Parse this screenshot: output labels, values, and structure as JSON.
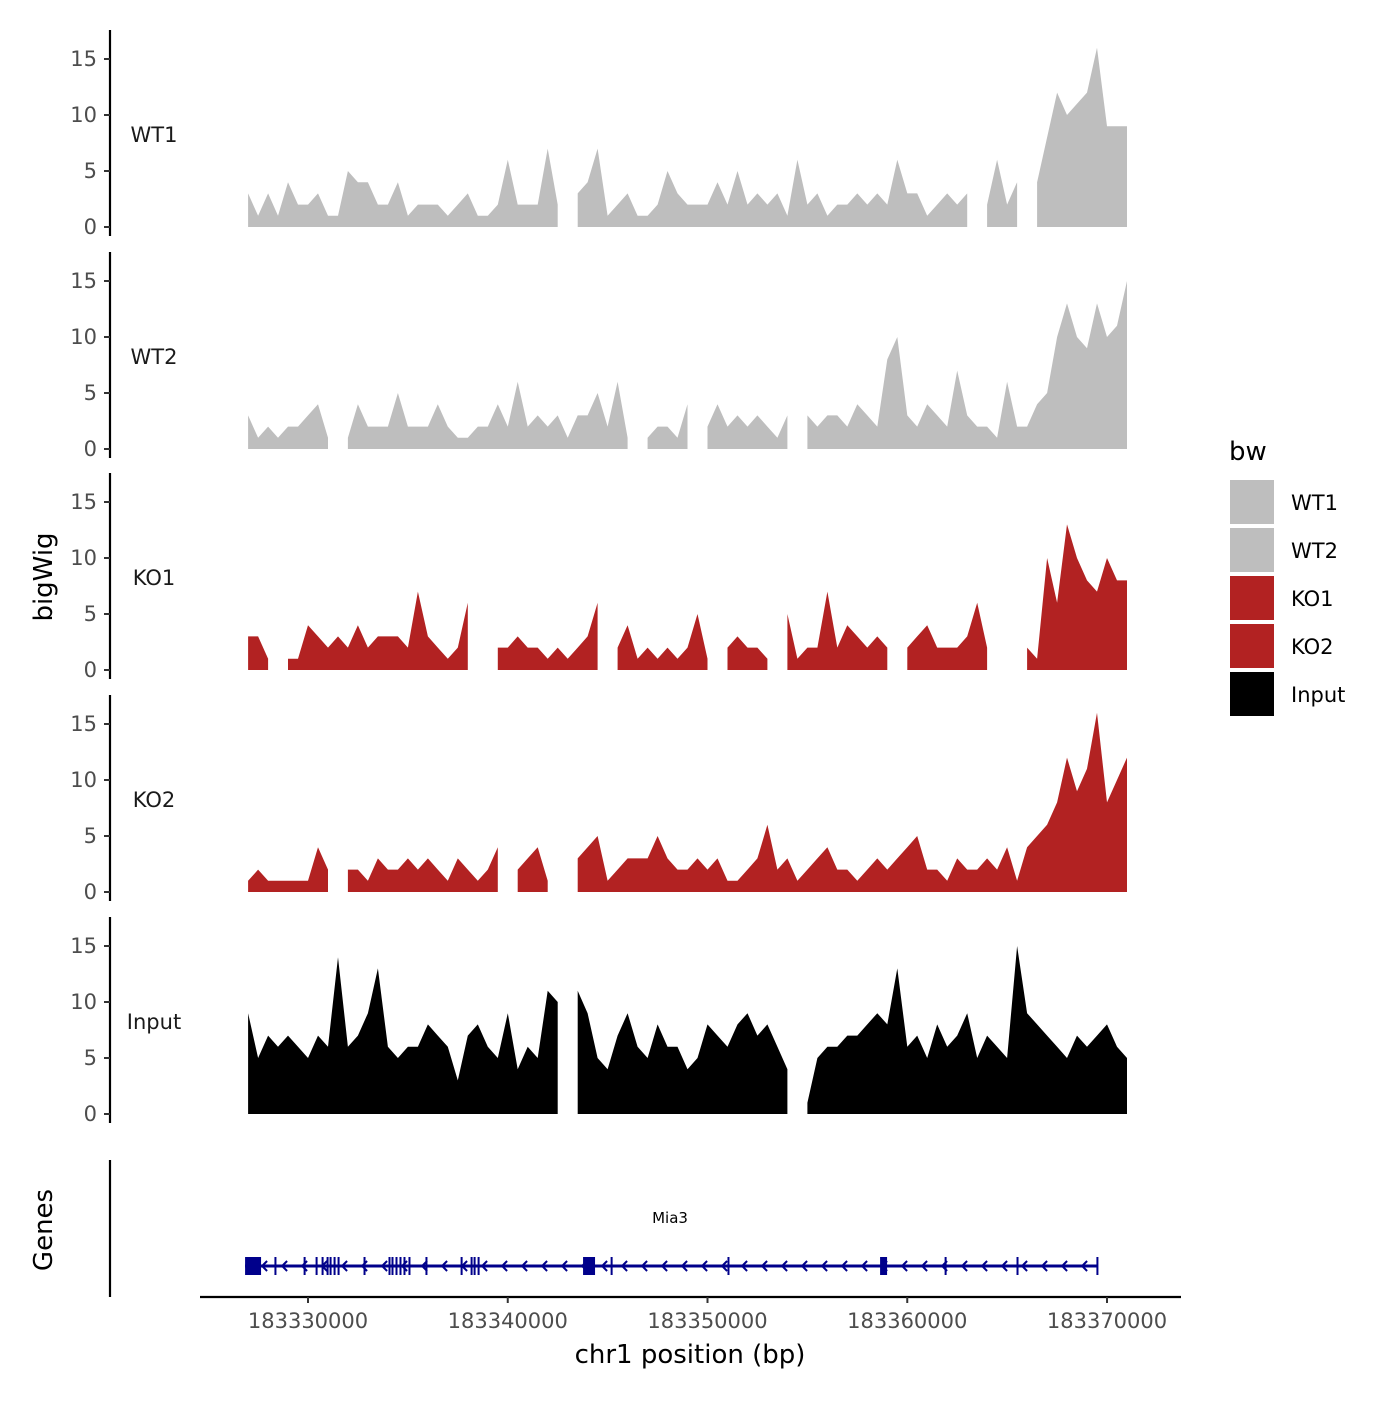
{
  "chart_data": {
    "type": "area",
    "ylabel": "bigWig",
    "genes_label": "Genes",
    "xlabel": "chr1 position (bp)",
    "x_ticks": [
      183330000,
      183340000,
      183350000,
      183360000,
      183370000
    ],
    "x_tick_labels": [
      "183330000",
      "183340000",
      "183350000",
      "183360000",
      "183370000"
    ],
    "xlim": [
      183326850,
      183371450
    ],
    "ylim": [
      0,
      16.5
    ],
    "y_ticks": [
      0,
      5,
      10,
      15
    ],
    "y_tick_labels": [
      "0",
      "5",
      "10",
      "15"
    ],
    "x_start": 183327000,
    "x_step": 500,
    "series": [
      {
        "name": "WT1",
        "color": "#bebebe",
        "values": [
          3,
          1,
          3,
          1,
          4,
          2,
          2,
          3,
          1,
          1,
          5,
          4,
          4,
          2,
          2,
          4,
          1,
          2,
          2,
          2,
          1,
          2,
          3,
          1,
          1,
          2,
          6,
          2,
          2,
          2,
          7,
          2,
          null,
          3,
          4,
          7,
          1,
          2,
          3,
          1,
          1,
          2,
          5,
          3,
          2,
          2,
          2,
          4,
          2,
          5,
          2,
          3,
          2,
          3,
          1,
          6,
          2,
          3,
          1,
          2,
          2,
          3,
          2,
          3,
          2,
          6,
          3,
          3,
          1,
          2,
          3,
          2,
          3,
          null,
          2,
          6,
          2,
          4,
          null,
          4,
          8,
          12,
          10,
          11,
          12,
          16,
          9,
          9,
          9
        ]
      },
      {
        "name": "WT2",
        "color": "#bebebe",
        "values": [
          3,
          1,
          2,
          1,
          2,
          2,
          3,
          4,
          1,
          null,
          1,
          4,
          2,
          2,
          2,
          5,
          2,
          2,
          2,
          4,
          2,
          1,
          1,
          2,
          2,
          4,
          2,
          6,
          2,
          3,
          2,
          3,
          1,
          3,
          3,
          5,
          2,
          6,
          1,
          null,
          1,
          2,
          2,
          1,
          4,
          null,
          2,
          4,
          2,
          3,
          2,
          3,
          2,
          1,
          3,
          null,
          3,
          2,
          3,
          3,
          2,
          4,
          3,
          2,
          8,
          10,
          3,
          2,
          4,
          3,
          2,
          7,
          3,
          2,
          2,
          1,
          6,
          2,
          2,
          4,
          5,
          10,
          13,
          10,
          9,
          13,
          10,
          11,
          15
        ]
      },
      {
        "name": "KO1",
        "color": "#b22222",
        "values": [
          3,
          3,
          1,
          null,
          1,
          1,
          4,
          3,
          2,
          3,
          2,
          4,
          2,
          3,
          3,
          3,
          2,
          7,
          3,
          2,
          1,
          2,
          6,
          null,
          null,
          2,
          2,
          3,
          2,
          2,
          1,
          2,
          1,
          2,
          3,
          6,
          null,
          2,
          4,
          1,
          2,
          1,
          2,
          1,
          2,
          5,
          1,
          null,
          2,
          3,
          2,
          2,
          1,
          null,
          5,
          1,
          2,
          2,
          7,
          2,
          4,
          3,
          2,
          3,
          2,
          null,
          2,
          3,
          4,
          2,
          2,
          2,
          3,
          6,
          2,
          null,
          2,
          null,
          2,
          1,
          10,
          6,
          13,
          10,
          8,
          7,
          10,
          8,
          8
        ]
      },
      {
        "name": "KO2",
        "color": "#b22222",
        "values": [
          1,
          2,
          1,
          1,
          1,
          1,
          1,
          4,
          2,
          null,
          2,
          2,
          1,
          3,
          2,
          2,
          3,
          2,
          3,
          2,
          1,
          3,
          2,
          1,
          2,
          4,
          null,
          2,
          3,
          4,
          1,
          null,
          null,
          3,
          4,
          5,
          1,
          2,
          3,
          3,
          3,
          5,
          3,
          2,
          2,
          3,
          2,
          3,
          1,
          1,
          2,
          3,
          6,
          2,
          3,
          1,
          2,
          3,
          4,
          2,
          2,
          1,
          2,
          3,
          2,
          3,
          4,
          5,
          2,
          2,
          1,
          3,
          2,
          2,
          3,
          2,
          4,
          1,
          4,
          5,
          6,
          8,
          12,
          9,
          11,
          16,
          8,
          10,
          12
        ]
      },
      {
        "name": "Input",
        "color": "#000000",
        "values": [
          9,
          5,
          7,
          6,
          7,
          6,
          5,
          7,
          6,
          14,
          6,
          7,
          9,
          13,
          6,
          5,
          6,
          6,
          8,
          7,
          6,
          3,
          7,
          8,
          6,
          5,
          9,
          4,
          6,
          5,
          11,
          10,
          null,
          11,
          9,
          5,
          4,
          7,
          9,
          6,
          5,
          8,
          6,
          6,
          4,
          5,
          8,
          7,
          6,
          8,
          9,
          7,
          8,
          6,
          4,
          null,
          1,
          5,
          6,
          6,
          7,
          7,
          8,
          9,
          8,
          13,
          6,
          7,
          5,
          8,
          6,
          7,
          9,
          5,
          7,
          6,
          5,
          15,
          9,
          8,
          7,
          6,
          5,
          7,
          6,
          7,
          8,
          6,
          5
        ]
      }
    ],
    "legend": {
      "title": "bw",
      "position": "right",
      "entries": [
        {
          "label": "WT1",
          "color": "#bebebe"
        },
        {
          "label": "WT2",
          "color": "#bebebe"
        },
        {
          "label": "KO1",
          "color": "#b22222"
        },
        {
          "label": "KO2",
          "color": "#b22222"
        },
        {
          "label": "Input",
          "color": "#000000"
        }
      ]
    },
    "gene": {
      "name": "Mia3",
      "strand": "-",
      "color": "#00008b",
      "start": 183326850,
      "end": 183369500,
      "exons": [
        [
          183326850,
          183327650
        ],
        [
          183328320,
          183328380
        ],
        [
          183329780,
          183329830
        ],
        [
          183330380,
          183330420
        ],
        [
          183330680,
          183330720
        ],
        [
          183330930,
          183330970
        ],
        [
          183331080,
          183331120
        ],
        [
          183331280,
          183331320
        ],
        [
          183331480,
          183331520
        ],
        [
          183332780,
          183332820
        ],
        [
          183334030,
          183334070
        ],
        [
          183334180,
          183334220
        ],
        [
          183334380,
          183334420
        ],
        [
          183334580,
          183334620
        ],
        [
          183334780,
          183334820
        ],
        [
          183335030,
          183335070
        ],
        [
          183335880,
          183335920
        ],
        [
          183337640,
          183337680
        ],
        [
          183338140,
          183338180
        ],
        [
          183338290,
          183338330
        ],
        [
          183338490,
          183338530
        ],
        [
          183343770,
          183344370
        ],
        [
          183345150,
          183345190
        ],
        [
          183351000,
          183351050
        ],
        [
          183358640,
          183358990
        ],
        [
          183361870,
          183361910
        ],
        [
          183365470,
          183365510
        ],
        [
          183369470,
          183369520
        ]
      ]
    }
  }
}
